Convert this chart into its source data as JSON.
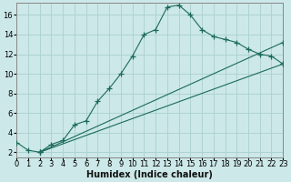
{
  "xlabel": "Humidex (Indice chaleur)",
  "bg_color": "#cce8e8",
  "grid_color": "#aad0d0",
  "line_color": "#1a6b5a",
  "xlim": [
    0,
    23
  ],
  "ylim": [
    1.5,
    17.2
  ],
  "xticks": [
    0,
    1,
    2,
    3,
    4,
    5,
    6,
    7,
    8,
    9,
    10,
    11,
    12,
    13,
    14,
    15,
    16,
    17,
    18,
    19,
    20,
    21,
    22,
    23
  ],
  "yticks": [
    2,
    4,
    6,
    8,
    10,
    12,
    14,
    16
  ],
  "line1_x": [
    0,
    1,
    2,
    3,
    4,
    5,
    6,
    7,
    8,
    9,
    10,
    11,
    12,
    13,
    14,
    15,
    16,
    17,
    18,
    19,
    20,
    21,
    22,
    23
  ],
  "line1_y": [
    3.0,
    2.2,
    2.0,
    2.8,
    3.2,
    4.8,
    5.2,
    7.2,
    8.5,
    10.0,
    11.8,
    14.0,
    14.5,
    16.8,
    17.0,
    16.0,
    14.5,
    13.8,
    13.5,
    13.2,
    12.5,
    12.0,
    11.8,
    11.0
  ],
  "line2_x": [
    2,
    23
  ],
  "line2_y": [
    2.0,
    11.0
  ],
  "line3_x": [
    2,
    23
  ],
  "line3_y": [
    2.0,
    13.2
  ],
  "marker": "+",
  "markersize": 4,
  "linewidth": 0.8,
  "xlabel_fontsize": 7,
  "tick_fontsize": 6,
  "xlabel_fontweight": "bold"
}
